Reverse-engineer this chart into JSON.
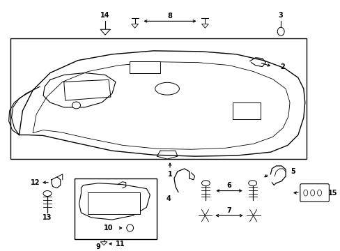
{
  "bg_color": "#ffffff",
  "line_color": "#000000",
  "fig_width": 4.89,
  "fig_height": 3.6,
  "dpi": 100,
  "label_fontsize": 7.0
}
